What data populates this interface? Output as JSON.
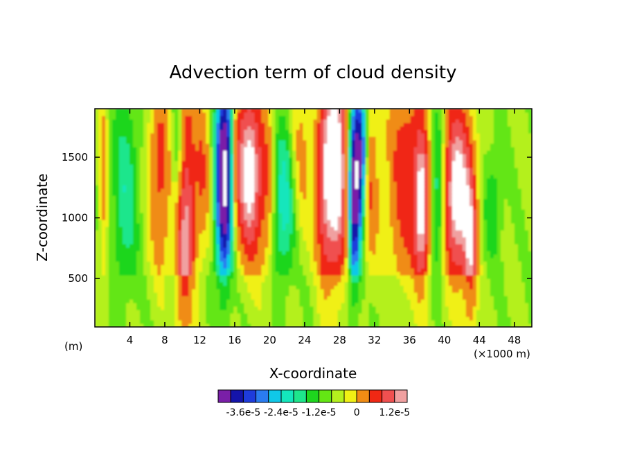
{
  "chart_data": {
    "type": "heatmap",
    "title": "Advection term of cloud density",
    "xlabel": "X-coordinate",
    "ylabel": "Z-coordinate",
    "x_unit_left": "(m)",
    "x_unit_right": "(×1000 m)",
    "xlim": [
      0,
      50
    ],
    "ylim": [
      100,
      1900
    ],
    "x_ticks": [
      4,
      8,
      12,
      16,
      20,
      24,
      28,
      32,
      36,
      40,
      44,
      48
    ],
    "y_ticks": [
      500,
      1000,
      1500
    ],
    "colorbar": {
      "colors": [
        "#7a1fa8",
        "#1414aa",
        "#1e3cdc",
        "#2a7cf0",
        "#10c8e8",
        "#14e6bc",
        "#1ee68c",
        "#1ed61e",
        "#64e614",
        "#b4f01e",
        "#f0f014",
        "#f08c14",
        "#f02814",
        "#f05050",
        "#f0a0a0"
      ],
      "labels": [
        "-3.6e-5",
        "-2.4e-5",
        "-1.2e-5",
        "0",
        "1.2e-5"
      ],
      "out_of_range_color": "#ffffff"
    },
    "note_features": [
      {
        "kind": "positive-core",
        "x": 10.2,
        "zmin": 350,
        "zmax": 1850
      },
      {
        "kind": "negative-core",
        "x": 14.8,
        "zmin": 800,
        "zmax": 1900
      },
      {
        "kind": "positive-core",
        "x": 27.5,
        "zmin": 650,
        "zmax": 1900
      },
      {
        "kind": "negative-core",
        "x": 30.0,
        "zmin": 850,
        "zmax": 1700
      },
      {
        "kind": "positive-core",
        "x": 41.5,
        "zmin": 800,
        "zmax": 1400
      }
    ]
  }
}
